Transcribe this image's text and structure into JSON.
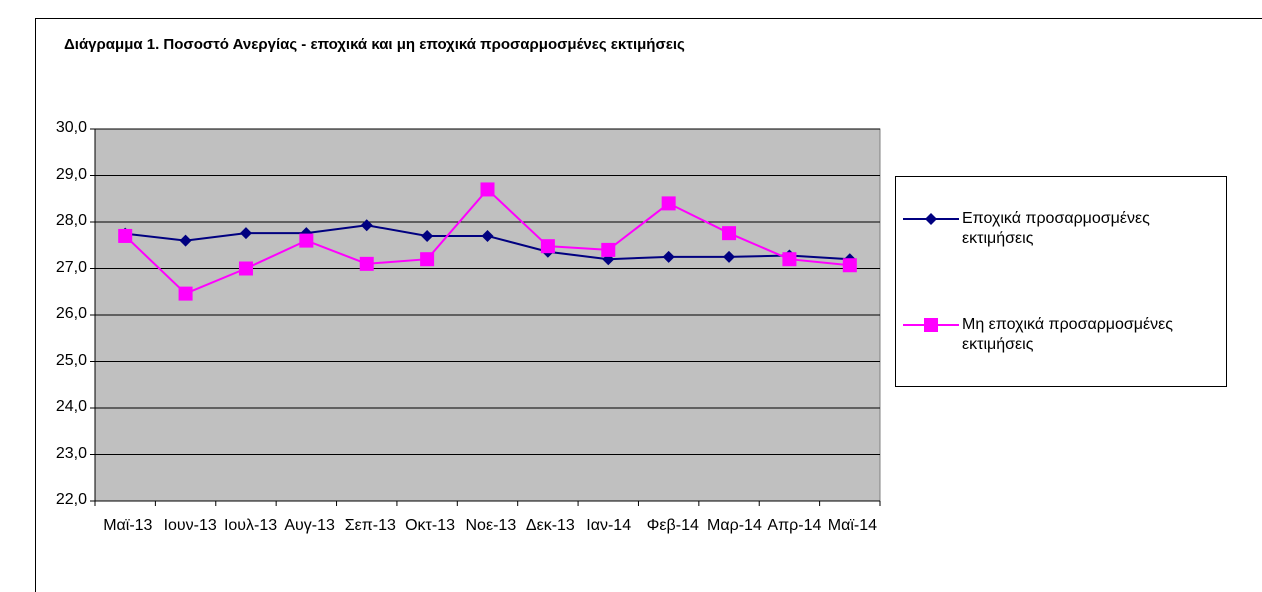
{
  "chart_data": {
    "type": "line",
    "title": "Διάγραμμα 1. Ποσοστό Ανεργίας - εποχικά και μη εποχικά προσαρμοσμένες εκτιμήσεις",
    "categories": [
      "Μαϊ-13",
      "Ιουν-13",
      "Ιουλ-13",
      "Αυγ-13",
      "Σεπ-13",
      "Οκτ-13",
      "Νοε-13",
      "Δεκ-13",
      "Ιαν-14",
      "Φεβ-14",
      "Μαρ-14",
      "Απρ-14",
      "Μαϊ-14"
    ],
    "series": [
      {
        "name": "Εποχικά προσαρμοσμένες εκτιμήσεις",
        "color": "#000080",
        "marker": "diamond",
        "values": [
          27.75,
          27.6,
          27.76,
          27.76,
          27.93,
          27.7,
          27.7,
          27.36,
          27.2,
          27.25,
          27.25,
          27.28,
          27.2
        ]
      },
      {
        "name": "Μη εποχικά προσαρμοσμένες εκτιμήσεις",
        "color": "#ff00ff",
        "marker": "square",
        "values": [
          27.7,
          26.46,
          27.0,
          27.6,
          27.1,
          27.2,
          28.7,
          27.48,
          27.4,
          28.4,
          27.76,
          27.2,
          27.07
        ]
      }
    ],
    "ylim": [
      22,
      30
    ],
    "yticks": [
      {
        "value": 22,
        "label": "22,0"
      },
      {
        "value": 23,
        "label": "23,0"
      },
      {
        "value": 24,
        "label": "24,0"
      },
      {
        "value": 25,
        "label": "25,0"
      },
      {
        "value": 26,
        "label": "26,0"
      },
      {
        "value": 27,
        "label": "27,0"
      },
      {
        "value": 28,
        "label": "28,0"
      },
      {
        "value": 29,
        "label": "29,0"
      },
      {
        "value": 30,
        "label": "30,0"
      }
    ],
    "grid": true,
    "plot_background": "#c0c0c0",
    "legend": "right"
  }
}
